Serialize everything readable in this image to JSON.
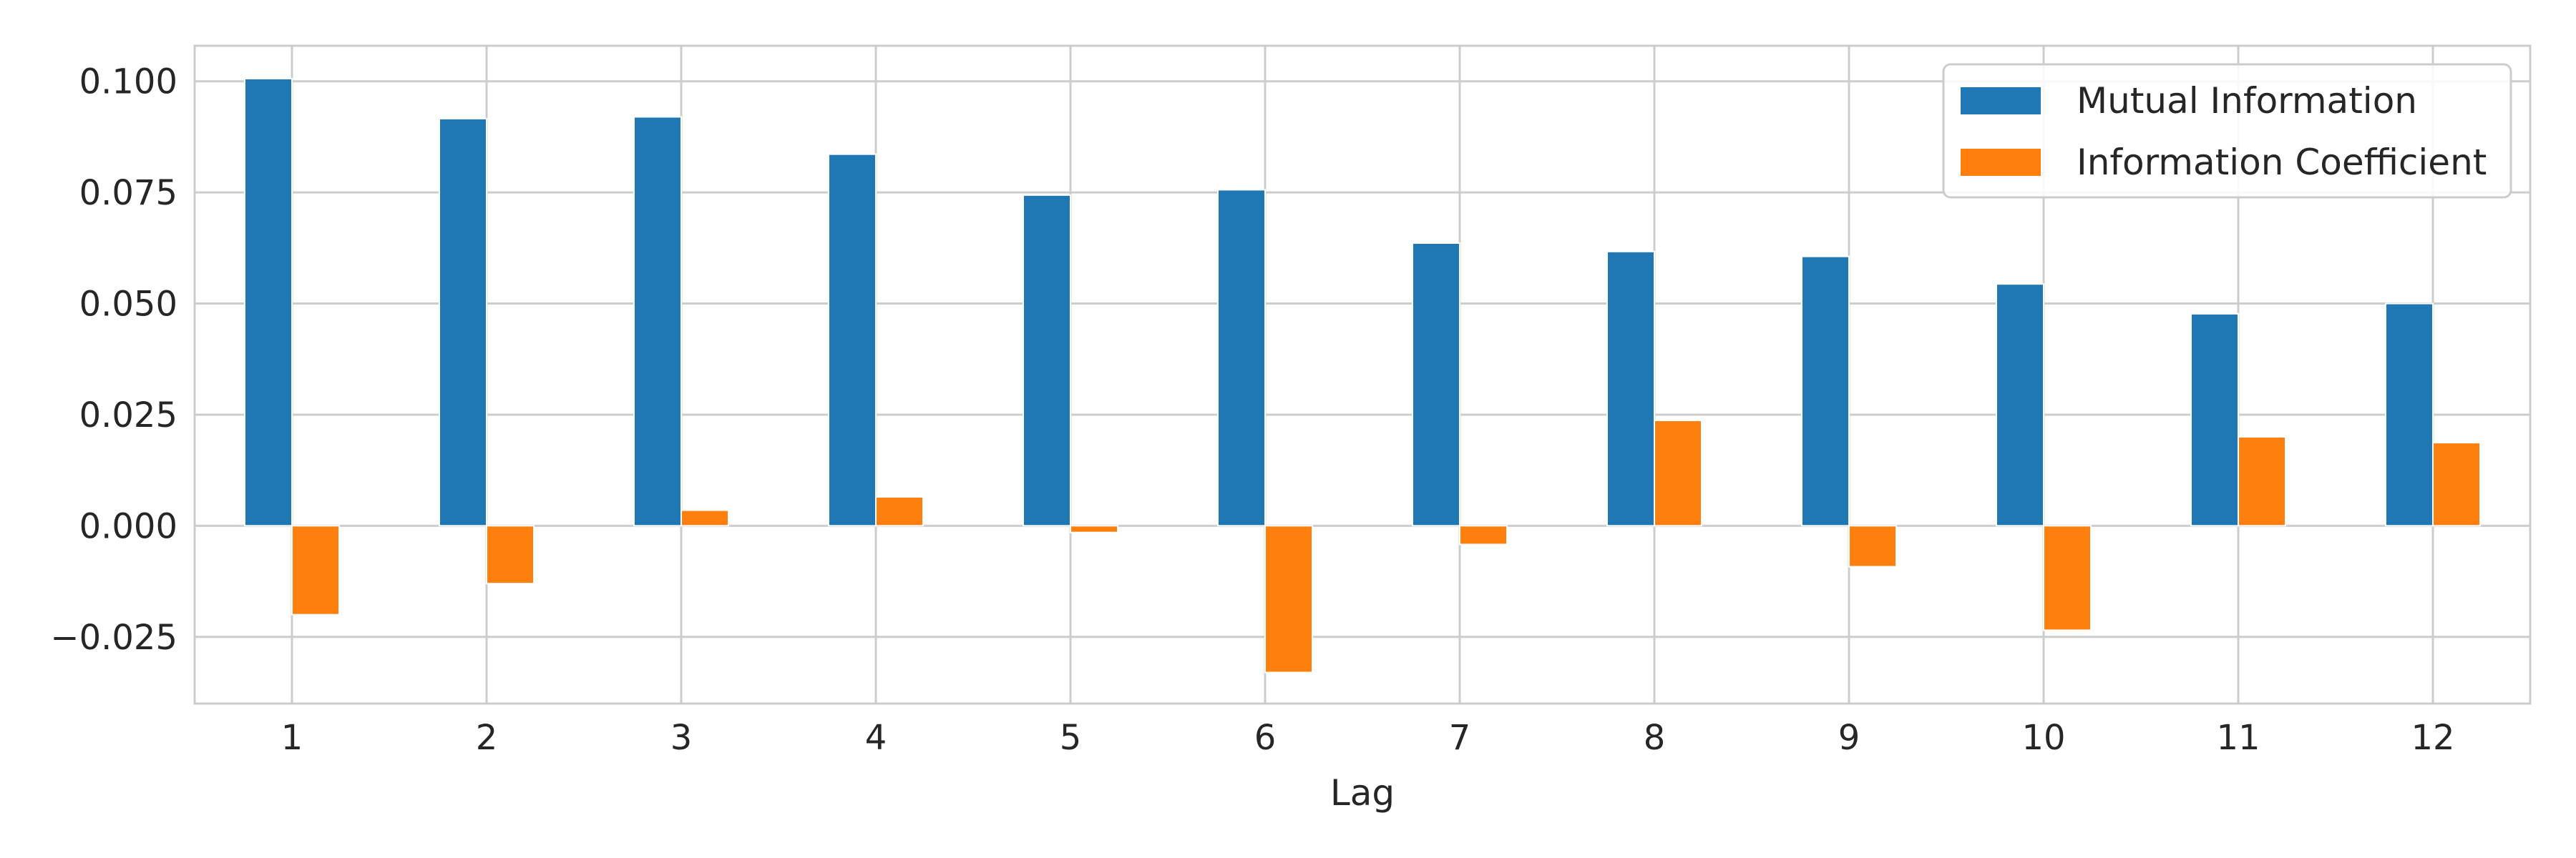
{
  "chart_data": {
    "type": "bar",
    "xlabel": "Lag",
    "ylabel": "",
    "categories": [
      "1",
      "2",
      "3",
      "4",
      "5",
      "6",
      "7",
      "8",
      "9",
      "10",
      "11",
      "12"
    ],
    "series": [
      {
        "name": "Mutual Information",
        "color": "#1f77b4",
        "values": [
          0.1006,
          0.0916,
          0.092,
          0.0836,
          0.0744,
          0.0756,
          0.0636,
          0.0617,
          0.0606,
          0.0544,
          0.0477,
          0.05
        ]
      },
      {
        "name": "Information Coefficient",
        "color": "#ff7f0e",
        "values": [
          -0.02,
          -0.013,
          0.0035,
          0.0065,
          -0.0015,
          -0.033,
          -0.0042,
          0.0237,
          -0.0092,
          -0.0235,
          0.02,
          0.0187
        ]
      }
    ],
    "ylim": [
      -0.04,
      0.108
    ],
    "yticks": [
      -0.025,
      0.0,
      0.025,
      0.05,
      0.075,
      0.1
    ],
    "ytick_labels": [
      "−0.025",
      "0.000",
      "0.025",
      "0.050",
      "0.075",
      "0.100"
    ],
    "grid": true,
    "legend_position": "top-right",
    "style": {
      "grid_color": "#cccccc",
      "frame_color": "#cccccc",
      "background": "#ffffff"
    }
  }
}
